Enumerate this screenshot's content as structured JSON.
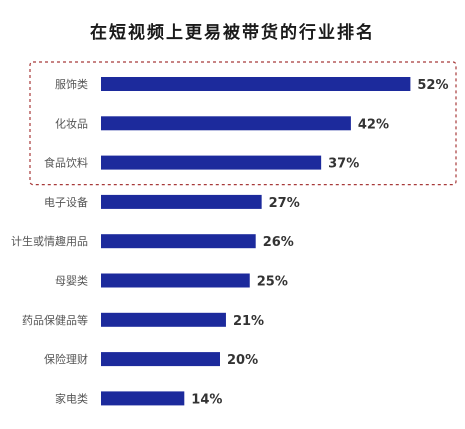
{
  "chart_data": {
    "type": "bar",
    "orientation": "horizontal",
    "title": "在短视频上更易被带货的行业排名",
    "categories": [
      "服饰类",
      "化妆品",
      "食品饮料",
      "电子设备",
      "计生或情趣用品",
      "母婴类",
      "药品保健品等",
      "保险理财",
      "家电类"
    ],
    "values": [
      52,
      42,
      37,
      27,
      26,
      25,
      21,
      20,
      14
    ],
    "value_labels": [
      "52%",
      "42%",
      "37%",
      "27%",
      "26%",
      "25%",
      "21%",
      "20%",
      "14%"
    ],
    "unit": "%",
    "xlim": [
      0,
      100
    ],
    "grid": false,
    "legend": "none",
    "highlighted_categories": [
      "服饰类",
      "化妆品",
      "食品饮料"
    ],
    "colors": {
      "bar": "#1c2a9c",
      "highlight_border": "#a83a3a"
    }
  }
}
